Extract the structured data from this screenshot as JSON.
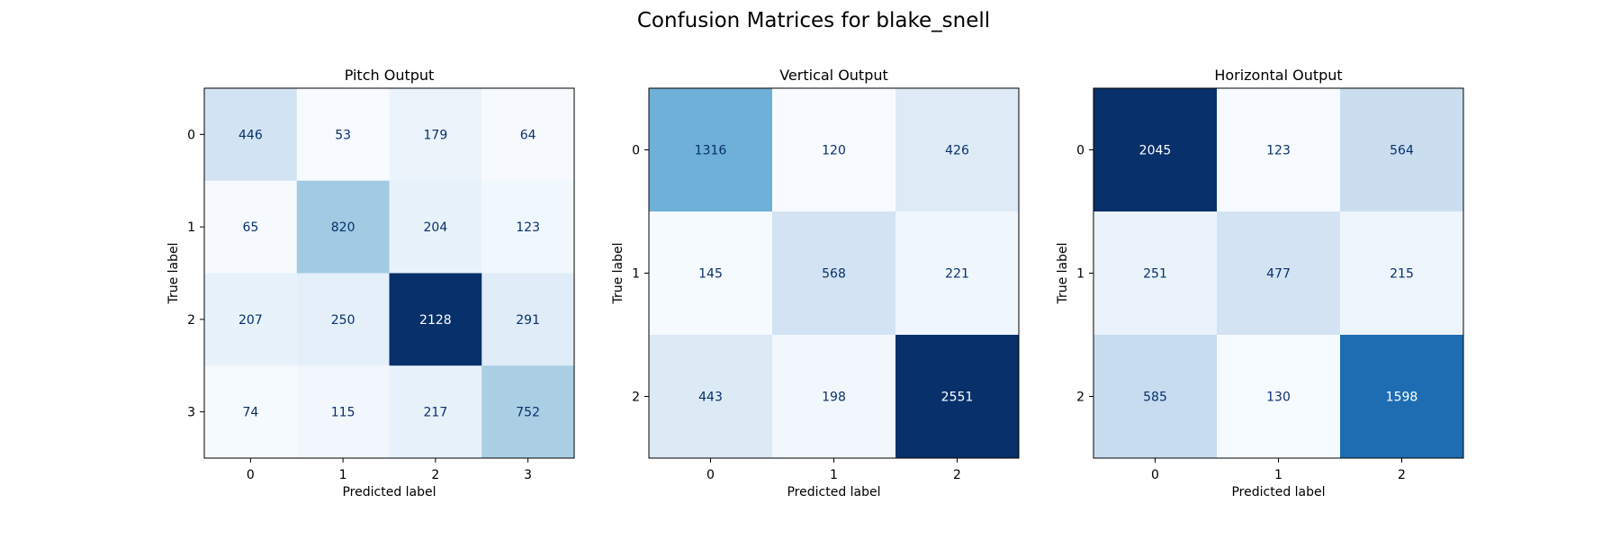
{
  "chart_data": {
    "title": "Confusion Matrices for blake_snell",
    "colormap": "Blues",
    "colors": {
      "low": "#f7fbff",
      "high": "#08306b",
      "dark_text": "#08306b",
      "light_text": "#ffffff"
    },
    "panels": [
      {
        "type": "heatmap",
        "title": "Pitch Output",
        "xlabel": "Predicted label",
        "ylabel": "True label",
        "x_ticks": [
          "0",
          "1",
          "2",
          "3"
        ],
        "y_ticks": [
          "0",
          "1",
          "2",
          "3"
        ],
        "matrix": [
          [
            446,
            53,
            179,
            64
          ],
          [
            65,
            820,
            204,
            123
          ],
          [
            207,
            250,
            2128,
            291
          ],
          [
            74,
            115,
            217,
            752
          ]
        ]
      },
      {
        "type": "heatmap",
        "title": "Vertical Output",
        "xlabel": "Predicted label",
        "ylabel": "True label",
        "x_ticks": [
          "0",
          "1",
          "2"
        ],
        "y_ticks": [
          "0",
          "1",
          "2"
        ],
        "matrix": [
          [
            1316,
            120,
            426
          ],
          [
            145,
            568,
            221
          ],
          [
            443,
            198,
            2551
          ]
        ]
      },
      {
        "type": "heatmap",
        "title": "Horizontal Output",
        "xlabel": "Predicted label",
        "ylabel": "True label",
        "x_ticks": [
          "0",
          "1",
          "2"
        ],
        "y_ticks": [
          "0",
          "1",
          "2"
        ],
        "matrix": [
          [
            2045,
            123,
            564
          ],
          [
            251,
            477,
            215
          ],
          [
            585,
            130,
            1598
          ]
        ]
      }
    ]
  }
}
